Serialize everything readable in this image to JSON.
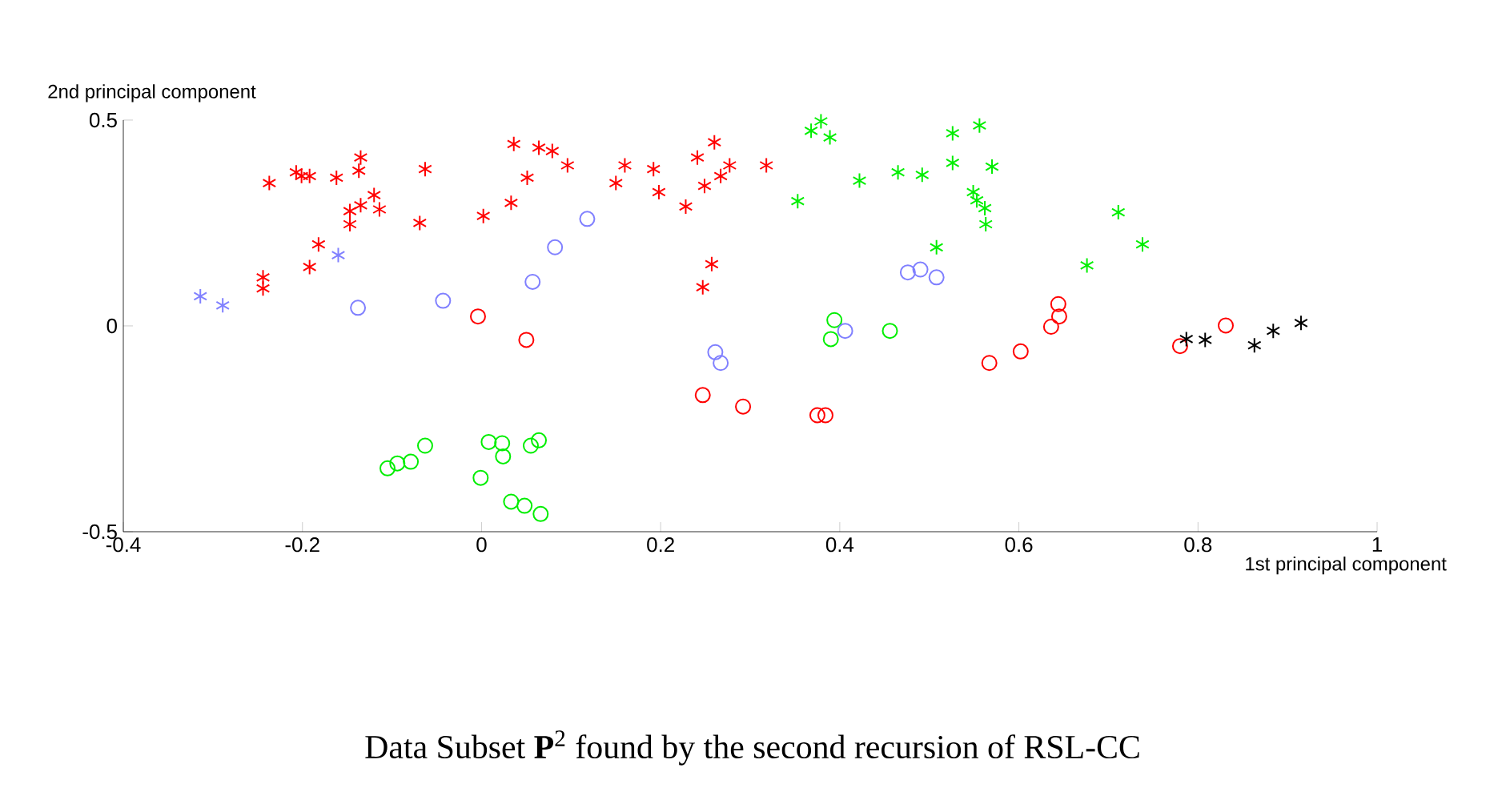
{
  "chart_data": {
    "type": "scatter",
    "xlabel": "1st principal component",
    "ylabel": "2nd principal component",
    "xlim": [
      -0.4,
      1
    ],
    "ylim": [
      -0.5,
      0.5
    ],
    "xticks": [
      -0.4,
      -0.2,
      0,
      0.2,
      0.4,
      0.6,
      0.8,
      1
    ],
    "yticks": [
      -0.5,
      0,
      0.5
    ],
    "grid": false,
    "annotations": [
      "Data Subset **P**$^{2}$ found by the second recursion of RSL-CC"
    ],
    "series": [
      {
        "color": "#ff0000",
        "marker": "cross",
        "x": [
          -0.237,
          -0.244,
          -0.244,
          -0.207,
          -0.192,
          -0.201,
          -0.162,
          -0.135,
          -0.137,
          -0.147,
          -0.135,
          -0.12,
          -0.114,
          -0.147,
          -0.182,
          -0.192,
          -0.063,
          -0.069,
          0.002,
          0.033,
          0.036,
          0.051,
          0.064,
          0.079,
          0.096,
          0.16,
          0.15,
          0.192,
          0.198,
          0.228,
          0.241,
          0.26,
          0.249,
          0.267,
          0.277,
          0.318,
          0.257,
          0.247
        ],
        "values": [
          0.347,
          0.118,
          0.091,
          0.373,
          0.364,
          0.364,
          0.36,
          0.409,
          0.377,
          0.279,
          0.293,
          0.318,
          0.283,
          0.247,
          0.198,
          0.143,
          0.381,
          0.25,
          0.267,
          0.299,
          0.442,
          0.36,
          0.433,
          0.425,
          0.39,
          0.39,
          0.347,
          0.381,
          0.325,
          0.29,
          0.409,
          0.446,
          0.34,
          0.364,
          0.39,
          0.39,
          0.15,
          0.094
        ]
      },
      {
        "color": "#ff0000",
        "marker": "circle",
        "x": [
          -0.004,
          0.05,
          0.247,
          0.292,
          0.375,
          0.384,
          0.567,
          0.602,
          0.644,
          0.645,
          0.636,
          0.78,
          0.831
        ],
        "values": [
          0.023,
          -0.034,
          -0.168,
          -0.196,
          -0.217,
          -0.217,
          -0.09,
          -0.062,
          0.053,
          0.023,
          -0.002,
          -0.049,
          0.001
        ]
      },
      {
        "color": "#00ee00",
        "marker": "cross",
        "x": [
          0.368,
          0.379,
          0.389,
          0.353,
          0.422,
          0.465,
          0.492,
          0.526,
          0.526,
          0.508,
          0.556,
          0.57,
          0.549,
          0.553,
          0.562,
          0.563,
          0.711,
          0.738,
          0.676
        ],
        "values": [
          0.474,
          0.497,
          0.458,
          0.303,
          0.353,
          0.373,
          0.367,
          0.468,
          0.396,
          0.191,
          0.487,
          0.387,
          0.325,
          0.305,
          0.286,
          0.247,
          0.276,
          0.198,
          0.147
        ]
      },
      {
        "color": "#00ee00",
        "marker": "circle",
        "x": [
          -0.105,
          -0.094,
          -0.079,
          -0.063,
          -0.001,
          0.008,
          0.023,
          0.024,
          0.055,
          0.064,
          0.033,
          0.048,
          0.066,
          0.394,
          0.39,
          0.456
        ],
        "values": [
          -0.346,
          -0.334,
          -0.33,
          -0.291,
          -0.369,
          -0.282,
          -0.285,
          -0.317,
          -0.291,
          -0.278,
          -0.427,
          -0.437,
          -0.457,
          0.014,
          -0.032,
          -0.012
        ]
      },
      {
        "color": "#8080ff",
        "marker": "circle",
        "x": [
          -0.138,
          -0.043,
          0.057,
          0.082,
          0.118,
          0.261,
          0.267,
          0.406,
          0.476,
          0.49,
          0.508
        ],
        "values": [
          0.044,
          0.061,
          0.107,
          0.191,
          0.26,
          -0.064,
          -0.09,
          -0.012,
          0.13,
          0.137,
          0.118
        ]
      },
      {
        "color": "#8080ff",
        "marker": "cross",
        "x": [
          -0.314,
          -0.289,
          -0.16
        ],
        "values": [
          0.072,
          0.05,
          0.172
        ]
      },
      {
        "color": "#000000",
        "marker": "cross",
        "x": [
          0.787,
          0.808,
          0.863,
          0.884,
          0.915
        ],
        "values": [
          -0.032,
          -0.034,
          -0.047,
          -0.012,
          0.007
        ]
      }
    ]
  }
}
